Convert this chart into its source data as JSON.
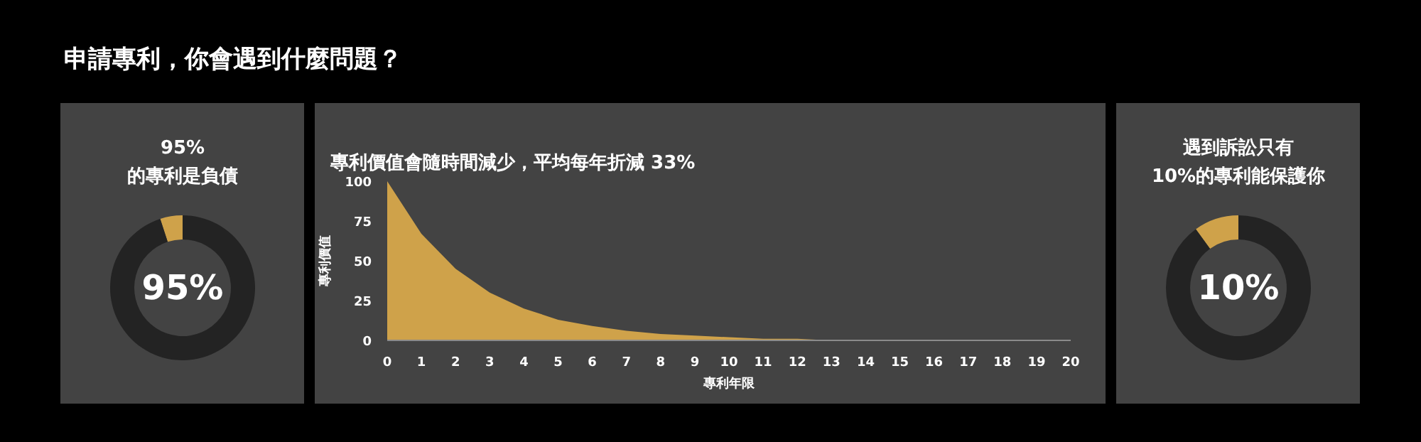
{
  "chart_data": [
    {
      "type": "donut",
      "title": "申請專利，你會遇到什麼問題？",
      "subtitle": "95%\n的專利是負債",
      "categories": [
        null,
        null
      ],
      "values": [
        5,
        95
      ],
      "colors": [
        "#cfa24a",
        "#232323"
      ],
      "annotations": [
        "95%"
      ]
    },
    {
      "type": "area",
      "title": "專利價值會隨時間減少，平均每年折減 33%",
      "xlabel": "專利年限",
      "ylabel": "專利價值",
      "x": [
        0,
        1,
        2,
        3,
        4,
        5,
        6,
        7,
        8,
        9,
        10,
        11,
        12,
        13,
        14,
        15,
        16,
        17,
        18,
        19,
        20
      ],
      "series": [
        {
          "color": "#cfa24a",
          "values": [
            100,
            67,
            45,
            30,
            20,
            13,
            9,
            6,
            4,
            3,
            2,
            1,
            1,
            0,
            0,
            0,
            0,
            0,
            0,
            0,
            0
          ]
        }
      ],
      "xlim": [
        0,
        20
      ],
      "ylim": [
        0,
        100
      ],
      "xticks": [
        0,
        1,
        2,
        3,
        4,
        5,
        6,
        7,
        8,
        9,
        10,
        11,
        12,
        13,
        14,
        15,
        16,
        17,
        18,
        19,
        20
      ],
      "yticks": [
        0,
        25,
        50,
        75,
        100
      ],
      "grid": false
    },
    {
      "type": "donut",
      "title": "遇到訴訟只有\n10%的專利能保護你",
      "categories": [
        null,
        null
      ],
      "values": [
        10,
        90
      ],
      "colors": [
        "#cfa24a",
        "#232323"
      ],
      "annotations": [
        "10%"
      ]
    }
  ]
}
